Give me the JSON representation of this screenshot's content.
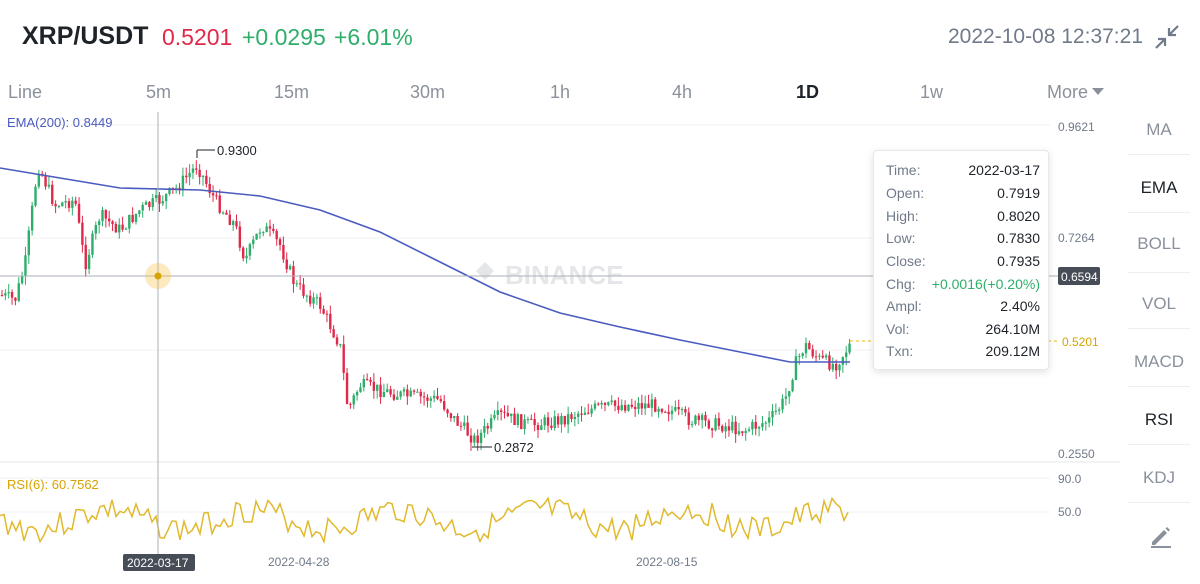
{
  "header": {
    "pair": "XRP/USDT",
    "price": "0.5201",
    "change": "+0.0295",
    "change_pct": "+6.01%",
    "datetime": "2022-10-08 12:37:21",
    "collapse_icon": "collapse-arrows-icon"
  },
  "tabs": [
    {
      "label": "Line",
      "active": false
    },
    {
      "label": "5m",
      "active": false
    },
    {
      "label": "15m",
      "active": false
    },
    {
      "label": "30m",
      "active": false
    },
    {
      "label": "1h",
      "active": false
    },
    {
      "label": "4h",
      "active": false
    },
    {
      "label": "1D",
      "active": true
    },
    {
      "label": "1w",
      "active": false
    },
    {
      "label": "More",
      "active": false
    }
  ],
  "indicators": [
    {
      "label": "MA",
      "active": false
    },
    {
      "label": "EMA",
      "active": true
    },
    {
      "label": "BOLL",
      "active": false
    },
    {
      "label": "VOL",
      "active": false
    },
    {
      "label": "MACD",
      "active": false
    },
    {
      "label": "RSI",
      "active": true
    },
    {
      "label": "KDJ",
      "active": false
    }
  ],
  "edit_icon": "pencil-icon",
  "chart": {
    "ema_label": "EMA(200): 0.8449",
    "rsi_label": "RSI(6): 60.7562",
    "price_axis": [
      "0.9621",
      "0.7264",
      "0.2550"
    ],
    "rsi_axis": [
      "90.0",
      "50.0"
    ],
    "crosshair_price": "0.6594",
    "current_price_tag": "0.5201",
    "high_marker": "0.9300",
    "low_marker": "0.2872",
    "date_labels": [
      "2022-04-28",
      "2022-08-15"
    ],
    "crosshair_date": "2022-03-17",
    "watermark": "BINANCE",
    "colors": {
      "up": "#2eae6a",
      "down": "#e0294a",
      "ema": "#4a5bbf",
      "rsi": "#e0b92c"
    }
  },
  "tooltip": {
    "rows": [
      {
        "label": "Time:",
        "value": "2022-03-17"
      },
      {
        "label": "Open:",
        "value": "0.7919"
      },
      {
        "label": "High:",
        "value": "0.8020"
      },
      {
        "label": "Low:",
        "value": "0.7830"
      },
      {
        "label": "Close:",
        "value": "0.7935"
      },
      {
        "label": "Chg:",
        "value": "+0.0016(+0.20%)"
      },
      {
        "label": "Ampl:",
        "value": "2.40%"
      },
      {
        "label": "Vol:",
        "value": "264.10M"
      },
      {
        "label": "Txn:",
        "value": "209.12M"
      }
    ]
  }
}
